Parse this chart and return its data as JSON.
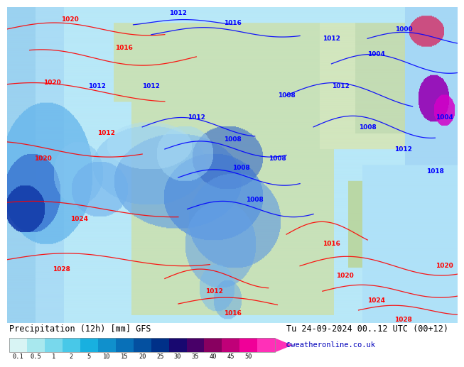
{
  "title_left": "Precipitation (12h) [mm] GFS",
  "title_right": "Tu 24-09-2024 00..12 UTC (00+12)",
  "credit": "©weatheronline.co.uk",
  "colorbar_labels": [
    "0.1",
    "0.5",
    "1",
    "2",
    "5",
    "10",
    "15",
    "20",
    "25",
    "30",
    "35",
    "40",
    "45",
    "50"
  ],
  "colorbar_colors": [
    "#d8f4f4",
    "#a8e8ee",
    "#78d8ec",
    "#48c8e8",
    "#18b0e0",
    "#1090cc",
    "#0870b8",
    "#0450a0",
    "#003088",
    "#180870",
    "#480068",
    "#880060",
    "#c00078",
    "#f00098",
    "#ff30b8"
  ],
  "bg_color": "#ffffff",
  "title_fontsize": 8.5,
  "credit_fontsize": 7.5,
  "credit_color": "#0000bb",
  "map_colors": {
    "light_cyan_ocean": "#b8e8f8",
    "mid_cyan": "#90d8f0",
    "deep_blue": "#2060c0",
    "very_deep_blue": "#0030a0",
    "light_green_land": "#d0e8c0",
    "mid_green": "#b8d8a0",
    "pale_blue_precip": "#a0d0f0",
    "light_blue_precip": "#80c0ec",
    "blue_precip": "#5090d8",
    "dark_blue_precip": "#2060b8",
    "purple_precip": "#8000a0",
    "magenta_precip": "#d000c0"
  }
}
